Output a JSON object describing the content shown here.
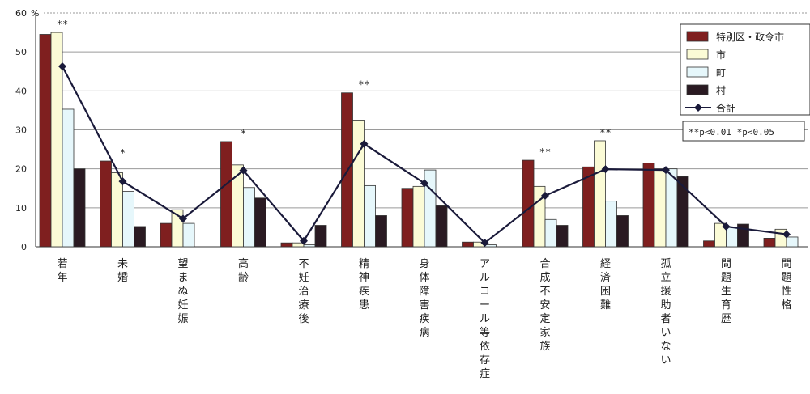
{
  "chart_data": {
    "type": "bar",
    "y_unit": "%",
    "ylim": [
      0,
      60
    ],
    "y_ticks": [
      0,
      10,
      20,
      30,
      40,
      50,
      60
    ],
    "grid": true,
    "categories": [
      "若年",
      "未婚",
      "望まぬ妊娠",
      "高齢",
      "不妊治療後",
      "精神疾患",
      "身体障害疾病",
      "アルコール等依存症",
      "合成不安定家族",
      "経済困難",
      "孤立援助者いない",
      "問題生育歴",
      "問題性格"
    ],
    "series": [
      {
        "name": "特別区・政令市",
        "kind": "bar",
        "color": "#7f1f1f",
        "values": [
          54.5,
          22,
          6,
          27,
          1,
          39.5,
          15,
          1.2,
          22.2,
          20.5,
          21.5,
          1.5,
          2.2
        ]
      },
      {
        "name": "市",
        "kind": "bar",
        "color": "#fbfbd6",
        "values": [
          55,
          19,
          9.5,
          21,
          1,
          32.5,
          15.5,
          1.2,
          15.5,
          27.2,
          20,
          6,
          4.5
        ]
      },
      {
        "name": "町",
        "kind": "bar",
        "color": "#e6f7fb",
        "values": [
          35.3,
          14.2,
          6,
          15.2,
          0.5,
          15.7,
          19.7,
          0.5,
          7,
          11.7,
          20,
          5,
          2.5
        ]
      },
      {
        "name": "村",
        "kind": "bar",
        "color": "#2a1a22",
        "values": [
          20,
          5.2,
          0,
          12.5,
          5.5,
          8,
          10.5,
          0,
          5.5,
          8,
          18,
          5.8,
          0
        ]
      },
      {
        "name": "合計",
        "kind": "line",
        "color": "#1a1a3a",
        "values": [
          46.3,
          16.8,
          7.2,
          19.6,
          1.5,
          26.4,
          16.3,
          1.0,
          13.1,
          19.9,
          19.7,
          5.2,
          3.2
        ]
      }
    ],
    "significance": [
      "**",
      "*",
      "",
      "*",
      "",
      "**",
      "",
      "",
      "**",
      "**",
      "",
      "",
      ""
    ],
    "legend_position": "top-right",
    "note": "**p<0.01 *p<0.05"
  }
}
